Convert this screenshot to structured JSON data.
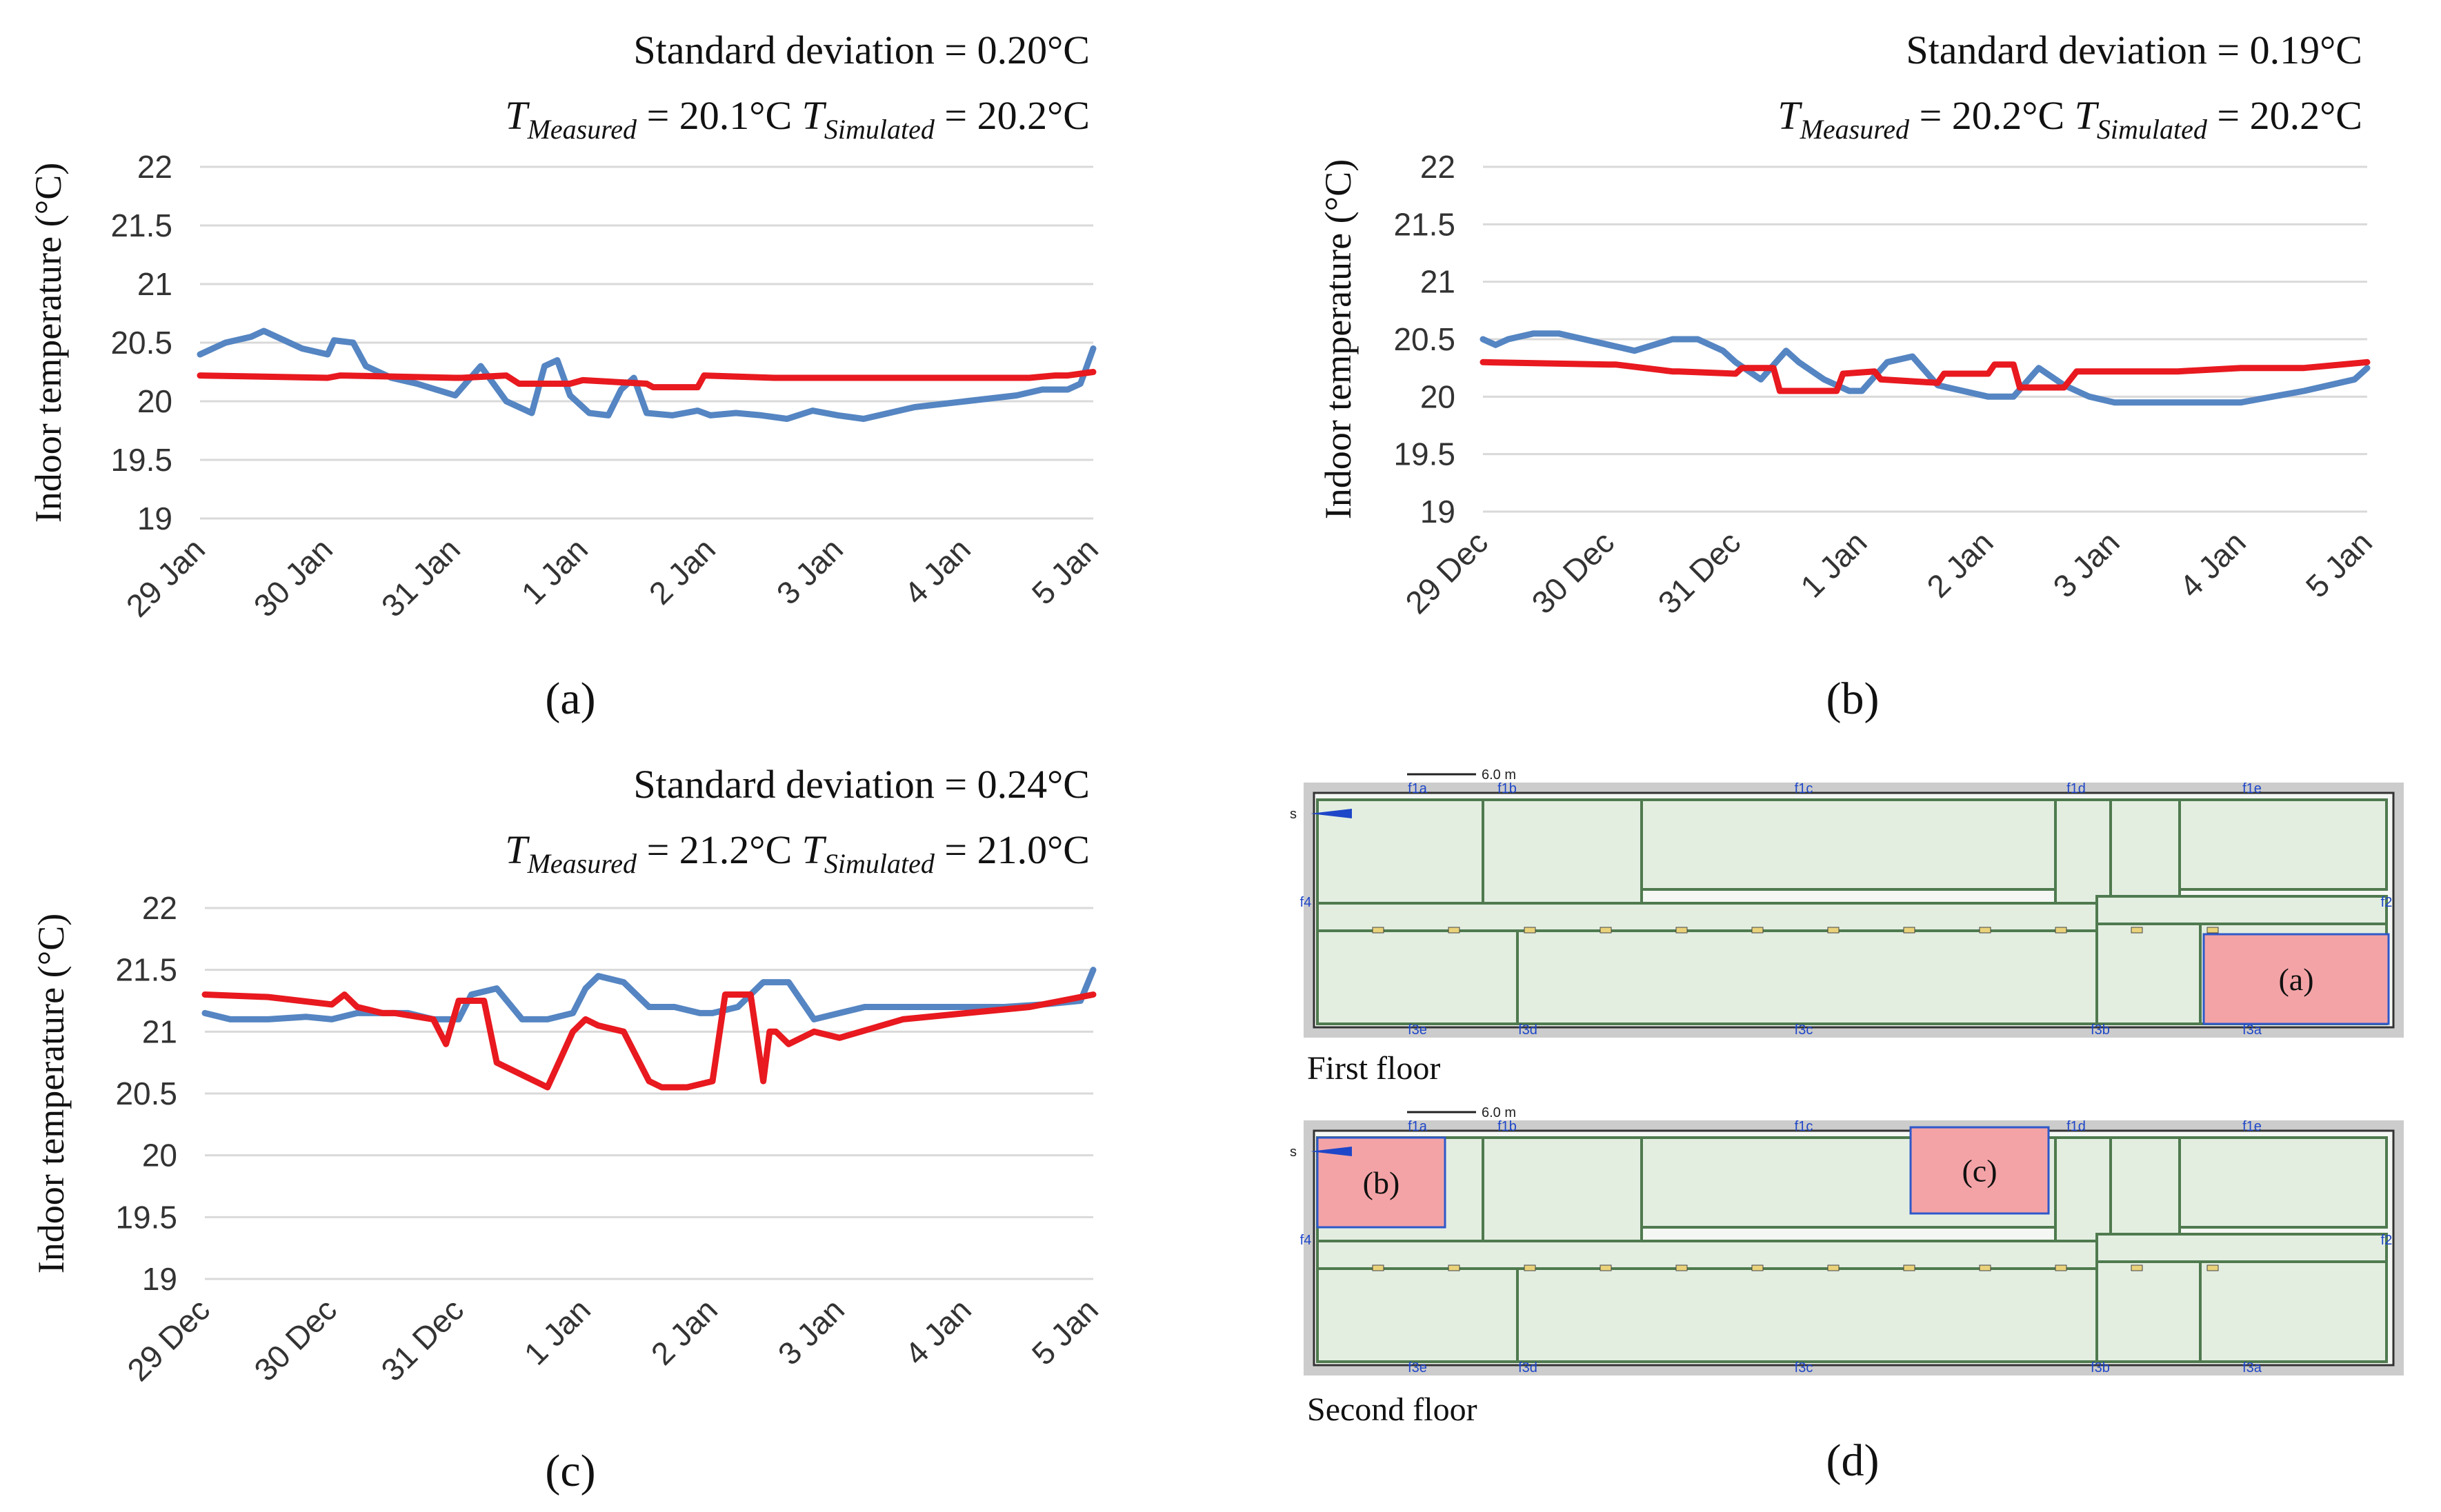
{
  "colors": {
    "measured": "#5585c2",
    "simulated": "#e8191f",
    "grid": "#d9d9d9",
    "room_fill": "#e3eee1",
    "room_stroke": "#4f7a4f",
    "highlight": "#f3a3a6",
    "site": "#cccccc"
  },
  "chart_data": [
    {
      "id": "a",
      "type": "line",
      "panel_label": "(a)",
      "title": "Standard deviation = 0.20°C",
      "measured_mean": {
        "symbol": "T",
        "subscript": "Measured",
        "value": "= 20.1°C"
      },
      "simulated_mean": {
        "symbol": "T",
        "subscript": "Simulated",
        "value": "= 20.2°C"
      },
      "ylabel": "Indoor temperature (°C)",
      "ylim": [
        19,
        22
      ],
      "yticks": [
        19,
        19.5,
        20,
        20.5,
        21,
        21.5,
        22
      ],
      "ytick_labels": [
        "19",
        "19.5",
        "20",
        "20.5",
        "21",
        "21.5",
        "22"
      ],
      "xlim": [
        0,
        7
      ],
      "categories": [
        "29 Jan",
        "30 Jan",
        "31 Jan",
        "1 Jan",
        "2 Jan",
        "3 Jan",
        "4 Jan",
        "5 Jan"
      ],
      "series": [
        {
          "name": "Measured",
          "x": [
            0,
            0.1,
            0.2,
            0.4,
            0.5,
            0.7,
            0.8,
            1.0,
            1.05,
            1.2,
            1.3,
            1.5,
            1.7,
            2.0,
            2.2,
            2.3,
            2.4,
            2.5,
            2.6,
            2.7,
            2.8,
            2.9,
            3.0,
            3.05,
            3.2,
            3.3,
            3.4,
            3.5,
            3.7,
            3.8,
            3.9,
            4.0,
            4.2,
            4.4,
            4.6,
            4.8,
            5.0,
            5.2,
            5.4,
            5.6,
            6.0,
            6.4,
            6.6,
            6.8,
            6.9,
            6.95,
            7.0
          ],
          "values": [
            20.4,
            20.45,
            20.5,
            20.55,
            20.6,
            20.5,
            20.45,
            20.4,
            20.52,
            20.5,
            20.3,
            20.2,
            20.15,
            20.05,
            20.3,
            20.15,
            20.0,
            19.95,
            19.9,
            20.3,
            20.35,
            20.05,
            19.95,
            19.9,
            19.88,
            20.1,
            20.2,
            19.9,
            19.88,
            19.9,
            19.92,
            19.88,
            19.9,
            19.88,
            19.85,
            19.92,
            19.88,
            19.85,
            19.9,
            19.95,
            20.0,
            20.05,
            20.1,
            20.1,
            20.15,
            20.3,
            20.45
          ]
        },
        {
          "name": "Simulated",
          "x": [
            0,
            1.0,
            1.1,
            2.0,
            2.05,
            2.4,
            2.5,
            2.9,
            3.0,
            3.5,
            3.55,
            3.9,
            3.95,
            4.5,
            5.5,
            6.0,
            6.5,
            6.7,
            6.8,
            7.0
          ],
          "values": [
            20.22,
            20.2,
            20.22,
            20.2,
            20.2,
            20.22,
            20.15,
            20.15,
            20.18,
            20.15,
            20.12,
            20.12,
            20.22,
            20.2,
            20.2,
            20.2,
            20.2,
            20.22,
            20.22,
            20.25
          ]
        }
      ]
    },
    {
      "id": "b",
      "type": "line",
      "panel_label": "(b)",
      "title": "Standard deviation = 0.19°C",
      "measured_mean": {
        "symbol": "T",
        "subscript": "Measured",
        "value": "= 20.2°C"
      },
      "simulated_mean": {
        "symbol": "T",
        "subscript": "Simulated",
        "value": "= 20.2°C"
      },
      "ylabel": "Indoor temperature (°C)",
      "ylim": [
        19,
        22
      ],
      "yticks": [
        19,
        19.5,
        20,
        20.5,
        21,
        21.5,
        22
      ],
      "ytick_labels": [
        "19",
        "19.5",
        "20",
        "20.5",
        "21",
        "21.5",
        "22"
      ],
      "xlim": [
        0,
        7
      ],
      "categories": [
        "29 Dec",
        "30 Dec",
        "31 Dec",
        "1 Jan",
        "2 Jan",
        "3 Jan",
        "4 Jan",
        "5 Jan"
      ],
      "series": [
        {
          "name": "Measured",
          "x": [
            0,
            0.1,
            0.2,
            0.4,
            0.6,
            0.8,
            1.0,
            1.2,
            1.5,
            1.7,
            1.9,
            2.0,
            2.2,
            2.4,
            2.5,
            2.7,
            2.9,
            3.0,
            3.2,
            3.4,
            3.6,
            3.8,
            4.0,
            4.2,
            4.4,
            4.6,
            4.8,
            5.0,
            5.5,
            6.0,
            6.5,
            6.9,
            7.0
          ],
          "values": [
            20.5,
            20.45,
            20.5,
            20.55,
            20.55,
            20.5,
            20.45,
            20.4,
            20.5,
            20.5,
            20.4,
            20.3,
            20.15,
            20.4,
            20.3,
            20.15,
            20.05,
            20.05,
            20.3,
            20.35,
            20.1,
            20.05,
            20.0,
            20.0,
            20.25,
            20.1,
            20.0,
            19.95,
            19.95,
            19.95,
            20.05,
            20.15,
            20.25
          ]
        },
        {
          "name": "Simulated",
          "x": [
            0,
            1.0,
            1.05,
            1.5,
            1.55,
            2.0,
            2.05,
            2.3,
            2.35,
            2.8,
            2.85,
            3.1,
            3.15,
            3.6,
            3.65,
            4.0,
            4.05,
            4.2,
            4.25,
            4.6,
            4.7,
            5.0,
            5.5,
            6.0,
            6.5,
            7.0
          ],
          "values": [
            20.3,
            20.28,
            20.28,
            20.22,
            20.22,
            20.2,
            20.25,
            20.25,
            20.05,
            20.05,
            20.2,
            20.22,
            20.15,
            20.12,
            20.2,
            20.2,
            20.28,
            20.28,
            20.08,
            20.08,
            20.22,
            20.22,
            20.22,
            20.25,
            20.25,
            20.3
          ]
        }
      ]
    },
    {
      "id": "c",
      "type": "line",
      "panel_label": "(c)",
      "title": "Standard deviation = 0.24°C",
      "measured_mean": {
        "symbol": "T",
        "subscript": "Measured",
        "value": "= 21.2°C"
      },
      "simulated_mean": {
        "symbol": "T",
        "subscript": "Simulated",
        "value": "= 21.0°C"
      },
      "ylabel": "Indoor temperature (°C)",
      "ylim": [
        19,
        22
      ],
      "yticks": [
        19,
        19.5,
        20,
        20.5,
        21,
        21.5,
        22
      ],
      "ytick_labels": [
        "19",
        "19.5",
        "20",
        "20.5",
        "21",
        "21.5",
        "22"
      ],
      "xlim": [
        0,
        7
      ],
      "categories": [
        "29 Dec",
        "30 Dec",
        "31 Dec",
        "1 Jan",
        "2 Jan",
        "3 Jan",
        "4 Jan",
        "5 Jan"
      ],
      "series": [
        {
          "name": "Measured",
          "x": [
            0,
            0.2,
            0.5,
            0.8,
            1.0,
            1.2,
            1.4,
            1.6,
            1.8,
            2.0,
            2.1,
            2.3,
            2.5,
            2.7,
            2.9,
            3.0,
            3.1,
            3.3,
            3.5,
            3.7,
            3.9,
            4.0,
            4.2,
            4.4,
            4.6,
            4.8,
            5.0,
            5.2,
            5.5,
            5.8,
            6.0,
            6.3,
            6.6,
            6.9,
            7.0
          ],
          "values": [
            21.15,
            21.1,
            21.1,
            21.12,
            21.1,
            21.15,
            21.15,
            21.15,
            21.1,
            21.1,
            21.3,
            21.35,
            21.1,
            21.1,
            21.15,
            21.35,
            21.45,
            21.4,
            21.2,
            21.2,
            21.15,
            21.15,
            21.2,
            21.4,
            21.4,
            21.1,
            21.15,
            21.2,
            21.2,
            21.2,
            21.2,
            21.2,
            21.22,
            21.25,
            21.5
          ]
        },
        {
          "name": "Simulated",
          "x": [
            0,
            0.5,
            1.0,
            1.1,
            1.2,
            1.4,
            1.5,
            1.8,
            1.9,
            2.0,
            2.05,
            2.2,
            2.3,
            2.5,
            2.7,
            2.9,
            3.0,
            3.1,
            3.3,
            3.5,
            3.6,
            3.8,
            4.0,
            4.1,
            4.2,
            4.3,
            4.4,
            4.45,
            4.5,
            4.6,
            4.7,
            4.8,
            5.0,
            5.5,
            6.0,
            6.5,
            7.0
          ],
          "values": [
            21.3,
            21.28,
            21.22,
            21.3,
            21.2,
            21.15,
            21.15,
            21.1,
            20.9,
            21.25,
            21.25,
            21.25,
            20.75,
            20.65,
            20.55,
            21.0,
            21.1,
            21.05,
            21.0,
            20.6,
            20.55,
            20.55,
            20.6,
            21.3,
            21.3,
            21.3,
            20.6,
            21.0,
            21.0,
            20.9,
            20.95,
            21.0,
            20.95,
            21.1,
            21.15,
            21.2,
            21.3
          ]
        }
      ]
    }
  ],
  "floor_plan": {
    "panel_label": "(d)",
    "scale_label": "6.0 m",
    "north_label": "s",
    "first_floor": {
      "label": "First floor",
      "room_label": "(a)",
      "zone_tags": [
        "f1a",
        "f1b",
        "f1c",
        "f1d",
        "f1e",
        "f4",
        "f2",
        "f3e",
        "f3d",
        "f3c",
        "f3b",
        "f3a"
      ]
    },
    "second_floor": {
      "label": "Second floor",
      "room_labels": [
        "(b)",
        "(c)"
      ],
      "zone_tags": [
        "f1a",
        "f1b",
        "f1c",
        "f1d",
        "f1e",
        "f4",
        "f2",
        "f3e",
        "f3d",
        "f3c",
        "f3b",
        "f3a"
      ]
    }
  }
}
